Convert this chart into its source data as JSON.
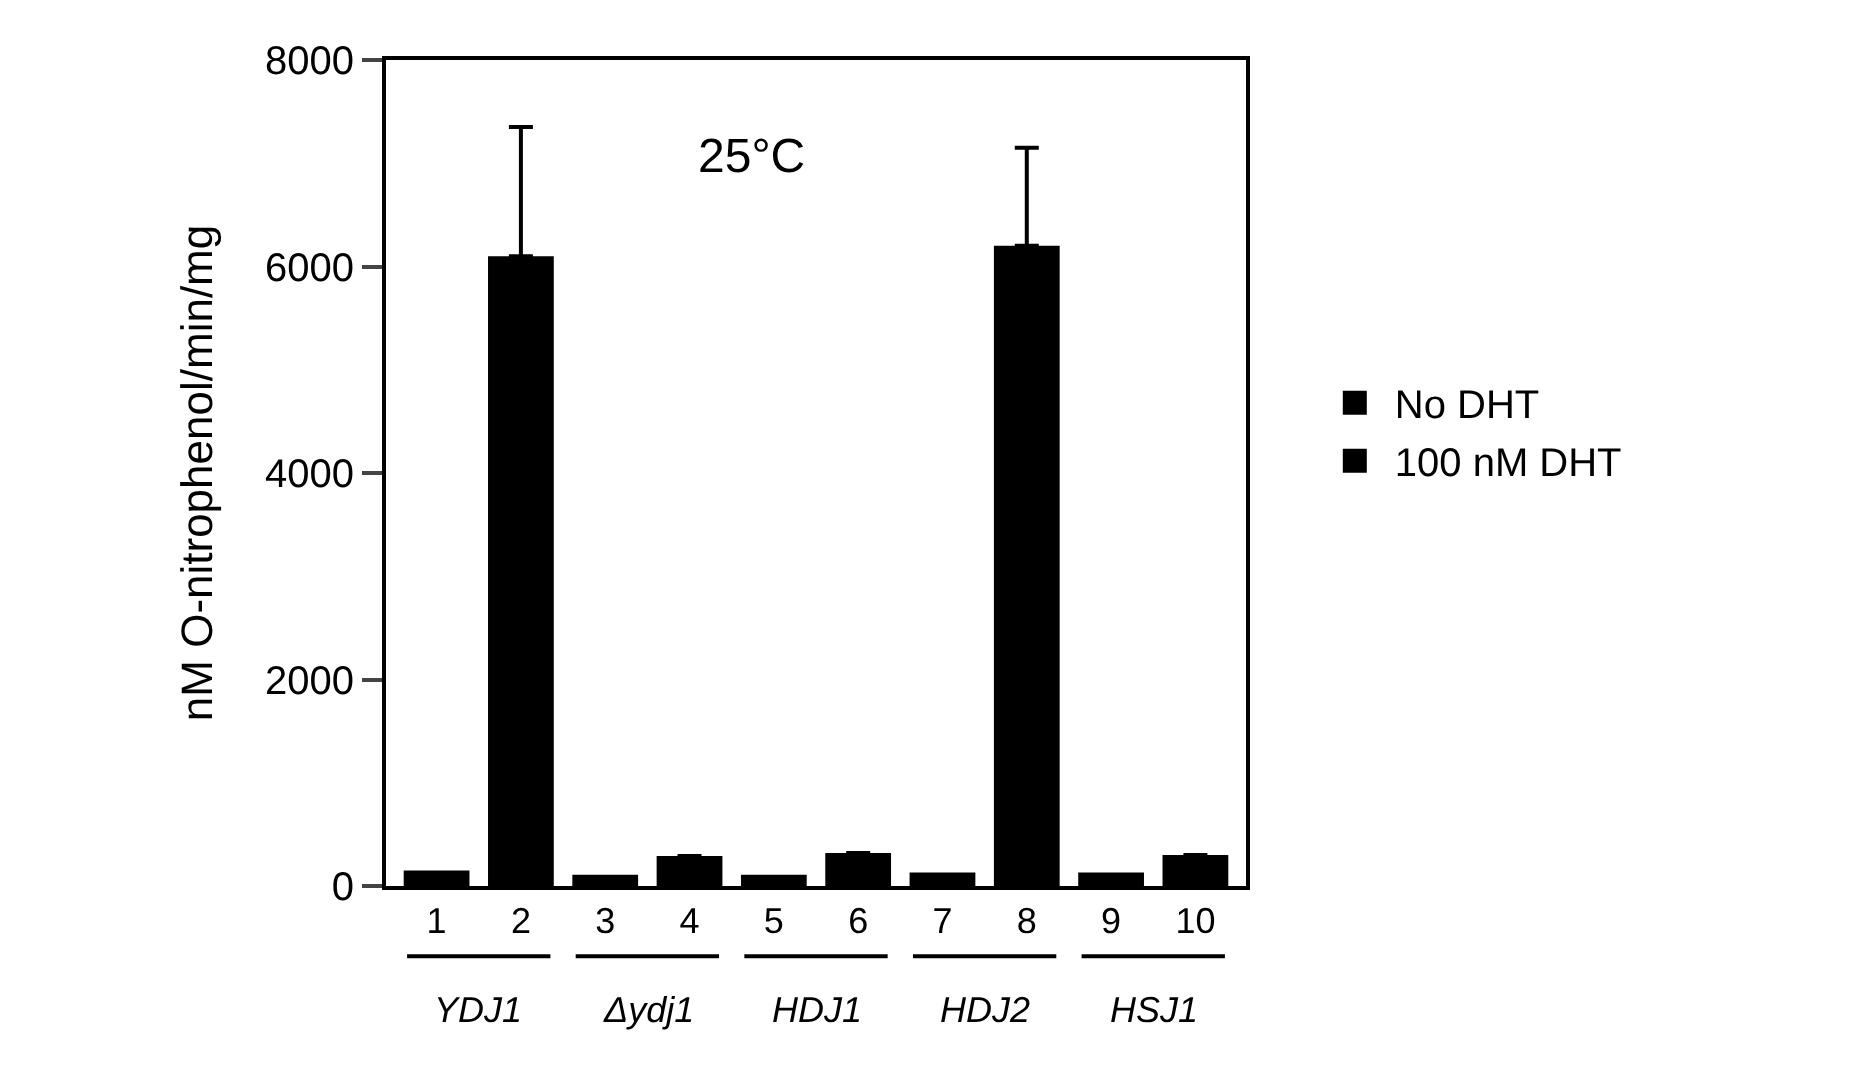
{
  "chart_data": {
    "type": "bar",
    "ylabel": "nM O-nitrophenol/min/mg",
    "categories": [
      "1",
      "2",
      "3",
      "4",
      "5",
      "6",
      "7",
      "8",
      "9",
      "10"
    ],
    "series": [
      {
        "name": "No DHT",
        "color": "#000000",
        "values": [
          150,
          null,
          110,
          null,
          110,
          null,
          130,
          null,
          130,
          null
        ]
      },
      {
        "name": "100 nM DHT",
        "color": "#000000",
        "values": [
          null,
          6100,
          null,
          290,
          null,
          320,
          null,
          6200,
          null,
          300
        ],
        "errors": [
          null,
          [
            6100,
            7350
          ],
          null,
          null,
          null,
          null,
          null,
          [
            6200,
            7150
          ],
          null,
          null
        ]
      }
    ],
    "ylim": [
      0,
      8000
    ],
    "yticks": [
      0,
      2000,
      4000,
      6000,
      8000
    ],
    "grid": false,
    "legend": "right",
    "annotations": [
      "25°C",
      "YDJ1",
      "Δydj1",
      "HDJ1",
      "HDJ2",
      "HSJ1"
    ]
  }
}
